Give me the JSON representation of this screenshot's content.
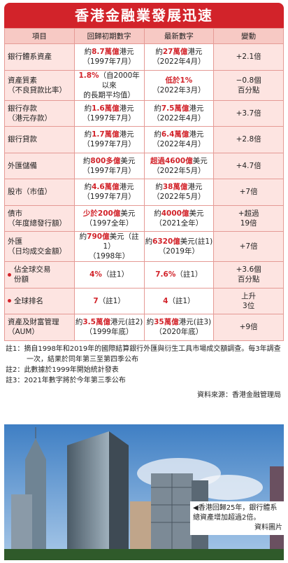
{
  "title": "香港金融業發展迅速",
  "table": {
    "columns": [
      "項目",
      "回歸初期數字",
      "最新數字",
      "變動"
    ],
    "rows": [
      {
        "item": [
          "銀行體系資產"
        ],
        "early": [
          [
            "約",
            {
              "text": "8.7萬億",
              "red": true
            },
            "港元"
          ],
          [
            "（1997年7月）"
          ]
        ],
        "latest": [
          [
            "約",
            {
              "text": "27萬億",
              "red": true
            },
            "港元"
          ],
          [
            "（2022年4月）"
          ]
        ],
        "change": [
          "+2.1倍"
        ]
      },
      {
        "item": [
          "資產質素",
          "（不良貸款比率）"
        ],
        "early": [
          [
            {
              "text": "1.8%",
              "red": true
            },
            "（自2000年以來"
          ],
          [
            "的長期平均值）"
          ]
        ],
        "latest": [
          [
            {
              "text": "低於1%",
              "red": true
            }
          ],
          [
            "（2022年3月）"
          ]
        ],
        "change": [
          "−0.8個",
          "百分點"
        ]
      },
      {
        "item": [
          "銀行存款",
          "（港元存款）"
        ],
        "early": [
          [
            "約",
            {
              "text": "1.6萬億",
              "red": true
            },
            "港元"
          ],
          [
            "（1997年7月）"
          ]
        ],
        "latest": [
          [
            "約",
            {
              "text": "7.5萬億",
              "red": true
            },
            "港元"
          ],
          [
            "（2022年4月）"
          ]
        ],
        "change": [
          "+3.7倍"
        ]
      },
      {
        "item": [
          "銀行貸款"
        ],
        "early": [
          [
            "約",
            {
              "text": "1.7萬億",
              "red": true
            },
            "港元"
          ],
          [
            "（1997年7月）"
          ]
        ],
        "latest": [
          [
            "約",
            {
              "text": "6.4萬億",
              "red": true
            },
            "港元"
          ],
          [
            "（2022年4月）"
          ]
        ],
        "change": [
          "+2.8倍"
        ]
      },
      {
        "item": [
          "外匯儲備"
        ],
        "early": [
          [
            "約",
            {
              "text": "800多億",
              "red": true
            },
            "美元"
          ],
          [
            "（1997年7月）"
          ]
        ],
        "latest": [
          [
            {
              "text": "超過4600億",
              "red": true
            },
            "美元"
          ],
          [
            "（2022年5月）"
          ]
        ],
        "change": [
          "+4.7倍"
        ]
      },
      {
        "item": [
          "股市（市值）"
        ],
        "early": [
          [
            "約",
            {
              "text": "4.6萬億",
              "red": true
            },
            "港元"
          ],
          [
            "（1997年7月）"
          ]
        ],
        "latest": [
          [
            "約",
            {
              "text": "38萬億",
              "red": true
            },
            "港元"
          ],
          [
            "（2022年5月）"
          ]
        ],
        "change": [
          "+7倍"
        ]
      },
      {
        "item": [
          "債市",
          "（年度總發行額）"
        ],
        "early": [
          [
            {
              "text": "少於200億",
              "red": true
            },
            "美元"
          ],
          [
            "（1997全年）"
          ]
        ],
        "latest": [
          [
            "約",
            {
              "text": "4000億",
              "red": true
            },
            "美元"
          ],
          [
            "（2021全年）"
          ]
        ],
        "change": [
          "+超過",
          "19倍"
        ]
      },
      {
        "item": [
          "外匯",
          "（日均成交金額）"
        ],
        "early": [
          [
            "約",
            {
              "text": "790億",
              "red": true
            },
            "美元（註1）"
          ],
          [
            "（1998年）"
          ]
        ],
        "latest": [
          [
            "約",
            {
              "text": "6320億",
              "red": true
            },
            "美元(註1)"
          ],
          [
            "（2019年）"
          ]
        ],
        "change": [
          "+7倍"
        ]
      },
      {
        "item": [
          "佔全球交易",
          "份額"
        ],
        "bullet": true,
        "early": [
          [
            {
              "text": "4%",
              "red": true
            },
            "（註1）"
          ]
        ],
        "latest": [
          [
            {
              "text": "7.6%",
              "red": true
            },
            "（註1）"
          ]
        ],
        "change": [
          "+3.6個",
          "百分點"
        ]
      },
      {
        "item": [
          "全球排名"
        ],
        "bullet": true,
        "early": [
          [
            {
              "text": "7",
              "red": true
            },
            "（註1）"
          ]
        ],
        "latest": [
          [
            {
              "text": "4",
              "red": true
            },
            "（註1）"
          ]
        ],
        "change": [
          "上升",
          "3位"
        ]
      },
      {
        "item": [
          "資產及財富管理",
          "（AUM）"
        ],
        "early": [
          [
            "約",
            {
              "text": "3.5萬億",
              "red": true
            },
            "港元(註2)"
          ],
          [
            "（1999年底）"
          ]
        ],
        "latest": [
          [
            "約",
            {
              "text": "35萬億",
              "red": true
            },
            "港元(註3)"
          ],
          [
            "（2020年底）"
          ]
        ],
        "change": [
          "+9倍"
        ]
      }
    ]
  },
  "notes": [
    "註1：摘自1998年和2019年的國際結算銀行外匯與衍生工具市場成交額調查。每3年調查一次，結果於同年第三至第四季公布",
    "註2：此數據於1999年開始統計發表",
    "註3：2021年數字將於今年第三季公布"
  ],
  "source": "資料來源：香港金融管理局",
  "photo": {
    "caption": "◀香港回歸25年，銀行體系總資產增加超過2倍。",
    "credit": "資料圖片"
  }
}
